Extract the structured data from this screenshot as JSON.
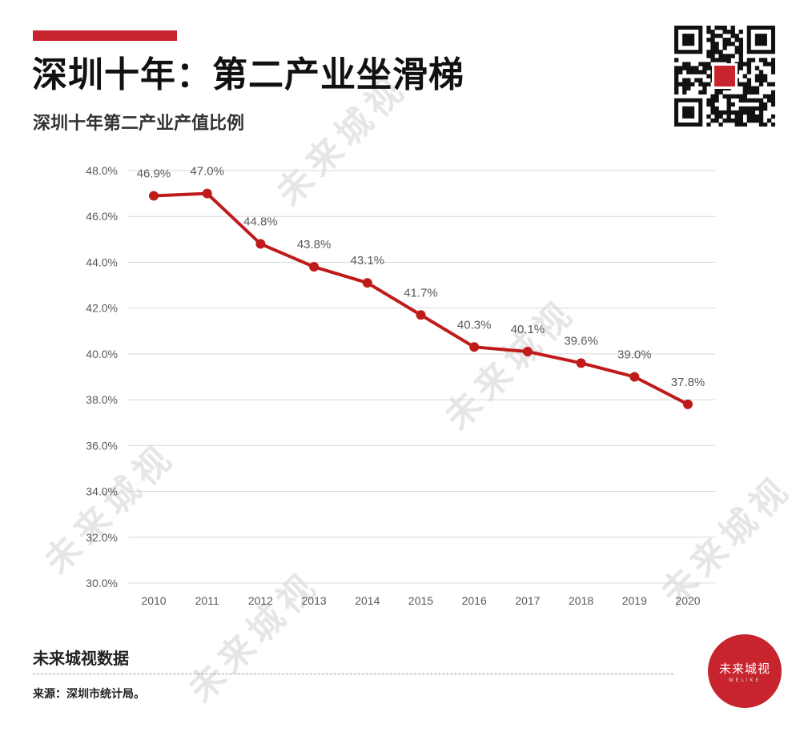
{
  "header": {
    "title": "深圳十年：第二产业坐滑梯",
    "subtitle": "深圳十年第二产业产值比例"
  },
  "colors": {
    "accent": "#c8242e",
    "line": "#bf1b1b",
    "grid": "#d9d9d9",
    "tick_text": "#595959"
  },
  "chart_data": {
    "type": "line",
    "categories": [
      "2010",
      "2011",
      "2012",
      "2013",
      "2014",
      "2015",
      "2016",
      "2017",
      "2018",
      "2019",
      "2020"
    ],
    "series": [
      {
        "values": [
          46.9,
          47.0,
          44.8,
          43.8,
          43.1,
          41.7,
          40.3,
          40.1,
          39.6,
          39.0,
          37.8
        ]
      }
    ],
    "data_labels": [
      "46.9%",
      "47.0%",
      "44.8%",
      "43.8%",
      "43.1%",
      "41.7%",
      "40.3%",
      "40.1%",
      "39.6%",
      "39.0%",
      "37.8%"
    ],
    "y_ticks": [
      "30.0%",
      "32.0%",
      "34.0%",
      "36.0%",
      "38.0%",
      "40.0%",
      "42.0%",
      "44.0%",
      "46.0%",
      "48.0%"
    ],
    "ylim": [
      30,
      48
    ],
    "y_step": 2,
    "grid": true
  },
  "footer": {
    "brand": "未来城视数据",
    "source": "来源：深圳市统计局。"
  },
  "badge": {
    "name": "未来城视",
    "sub": "WELIKE"
  },
  "watermark": {
    "text": "未来城视"
  }
}
